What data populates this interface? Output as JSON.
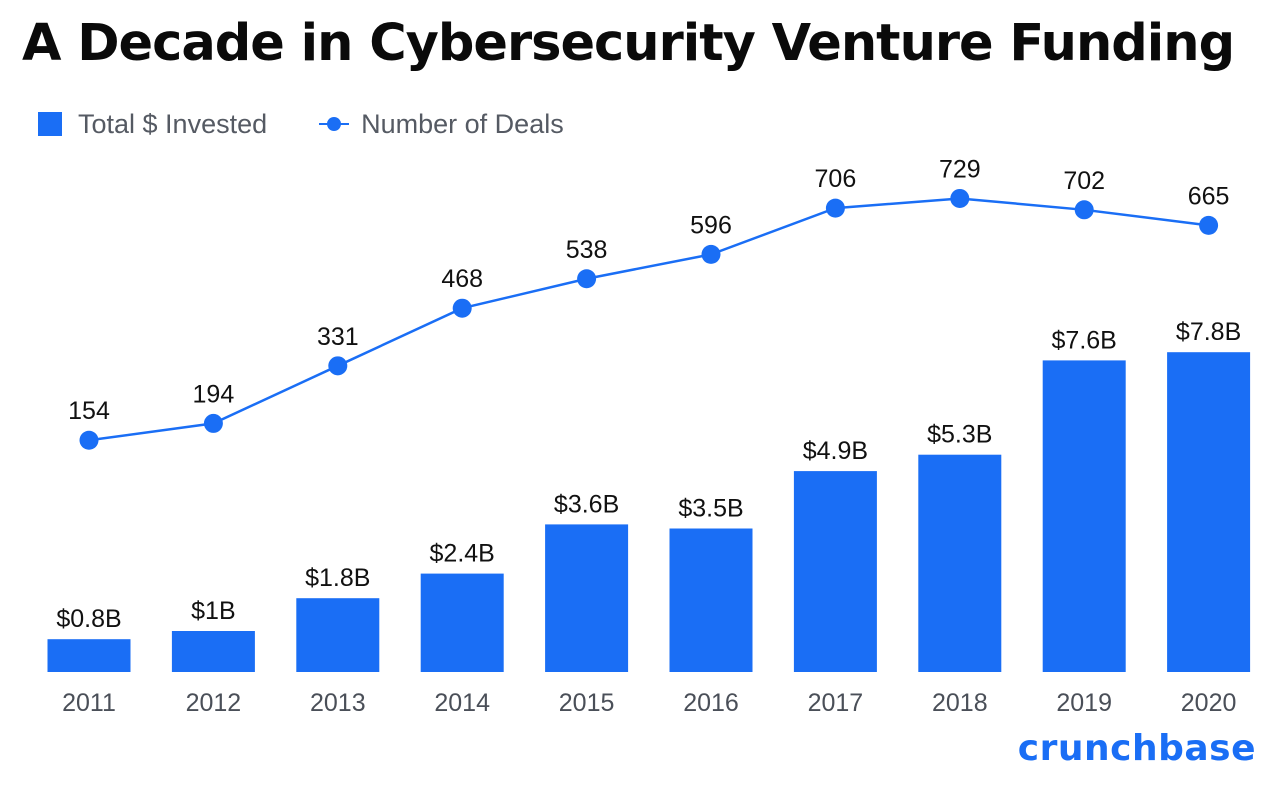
{
  "chart_data": {
    "type": "bar",
    "title": "A Decade in Cybersecurity Venture Funding",
    "categories": [
      "2011",
      "2012",
      "2013",
      "2014",
      "2015",
      "2016",
      "2017",
      "2018",
      "2019",
      "2020"
    ],
    "series": [
      {
        "name": "Total $ Invested",
        "type": "bar",
        "unit": "$B",
        "values": [
          0.8,
          1,
          1.8,
          2.4,
          3.6,
          3.5,
          4.9,
          5.3,
          7.6,
          7.8
        ],
        "labels": [
          "$0.8B",
          "$1B",
          "$1.8B",
          "$2.4B",
          "$3.6B",
          "$3.5B",
          "$4.9B",
          "$5.3B",
          "$7.6B",
          "$7.8B"
        ]
      },
      {
        "name": "Number of Deals",
        "type": "line",
        "values": [
          154,
          194,
          331,
          468,
          538,
          596,
          706,
          729,
          702,
          665
        ],
        "labels": [
          "154",
          "194",
          "331",
          "468",
          "538",
          "596",
          "706",
          "729",
          "702",
          "665"
        ]
      }
    ],
    "xlabel": "",
    "ylabel": "",
    "grid": false,
    "legend_position": "top-left"
  },
  "brand": "crunchbase",
  "colors": {
    "accent": "#1a6ef5",
    "title": "#0a0a0a",
    "label": "#111111",
    "axis_text": "#4a4f58"
  }
}
